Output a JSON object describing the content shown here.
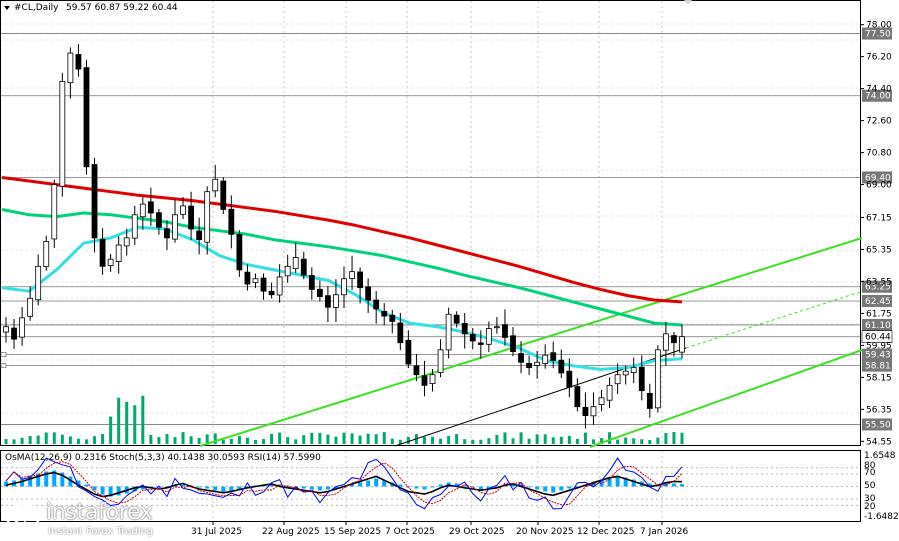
{
  "header": {
    "symbol": "#CL,Daily",
    "ohlc": "59.57 60.87 59.22 60.44"
  },
  "price_axis": {
    "ticks": [
      "78.00",
      "76.20",
      "74.40",
      "72.60",
      "70.80",
      "69.00",
      "67.15",
      "65.35",
      "63.55",
      "61.75",
      "59.95",
      "58.15",
      "56.35",
      "54.55"
    ]
  },
  "level_labels": [
    {
      "text": "77.50",
      "value": 77.5,
      "style": "level"
    },
    {
      "text": "74.00",
      "value": 74.0,
      "style": "level"
    },
    {
      "text": "69.40",
      "value": 69.4,
      "style": "level"
    },
    {
      "text": "63.25",
      "value": 63.25,
      "style": "level"
    },
    {
      "text": "62.45",
      "value": 62.45,
      "style": "level"
    },
    {
      "text": "61.10",
      "value": 61.1,
      "style": "level"
    },
    {
      "text": "60.44",
      "value": 60.44,
      "style": "current"
    },
    {
      "text": "59.43",
      "value": 59.43,
      "style": "level"
    },
    {
      "text": "58.81",
      "value": 58.81,
      "style": "level"
    },
    {
      "text": "55.50",
      "value": 55.5,
      "style": "level"
    }
  ],
  "time_axis": {
    "labels": [
      "31 Jul 2025",
      "22 Aug 2025",
      "15 Sep 2025",
      "7 Oct 2025",
      "29 Oct 2025",
      "20 Nov 2025",
      "12 Dec 2025",
      "7 Jan 2026"
    ]
  },
  "indicator": {
    "header": "OsMA(12,26,9) 0.2316  Stoch(5,3,3) 40.1438 30.0593  RSI(14) 57.5990",
    "ticks": [
      "1.6548",
      "80",
      "70",
      "50",
      "30",
      "20",
      "-1.6482"
    ]
  },
  "colors": {
    "ma_red": "#e00000",
    "ma_green": "#00d27a",
    "ma_cyan": "#33e0e6",
    "trend_green": "#3ee024",
    "candle": "#000000",
    "osma": "#00a8ff",
    "rsi": "#000000",
    "stoch_main": "#0000ff",
    "stoch_signal": "#c00000"
  },
  "chart_data": {
    "type": "candlestick",
    "symbol": "#CL",
    "timeframe": "Daily",
    "last_bar": {
      "open": 59.57,
      "high": 60.87,
      "low": 59.22,
      "close": 60.44
    },
    "ylim": [
      54.4,
      78.6
    ],
    "x_labels": [
      "31 Jul 2025",
      "22 Aug 2025",
      "15 Sep 2025",
      "7 Oct 2025",
      "29 Oct 2025",
      "20 Nov 2025",
      "12 Dec 2025",
      "7 Jan 2026"
    ],
    "closes": [
      61.0,
      60.3,
      61.5,
      62.6,
      64.4,
      65.8,
      69.0,
      74.8,
      76.4,
      75.5,
      70.0,
      66.0,
      64.4,
      64.8,
      65.6,
      66.0,
      67.3,
      67.9,
      67.4,
      66.6,
      66.0,
      67.3,
      67.8,
      66.5,
      65.9,
      68.6,
      69.3,
      67.6,
      66.2,
      64.2,
      63.4,
      63.7,
      63.0,
      62.8,
      63.8,
      64.4,
      64.9,
      63.9,
      63.1,
      62.7,
      62.1,
      62.8,
      63.7,
      64.1,
      63.2,
      62.5,
      62.0,
      61.6,
      61.3,
      60.1,
      58.9,
      58.3,
      57.7,
      58.3,
      59.7,
      61.7,
      61.2,
      60.6,
      60.2,
      60.0,
      60.9,
      61.0,
      60.4,
      59.6,
      59.0,
      58.7,
      59.0,
      59.4,
      59.1,
      58.4,
      57.6,
      56.5,
      56.0,
      56.5,
      57.0,
      57.7,
      58.3,
      58.5,
      58.7,
      57.4,
      56.4,
      59.7,
      60.6,
      60.1,
      60.4
    ],
    "moving_averages": [
      {
        "color": "#e00000",
        "values": [
          69.4,
          69.2,
          69.0,
          68.8,
          68.6,
          68.4,
          68.25,
          68.1,
          67.9,
          67.7,
          67.5,
          67.25,
          67.0,
          66.7,
          66.35,
          66.0,
          65.6,
          65.2,
          64.8,
          64.4,
          63.95,
          63.5,
          63.1,
          62.75,
          62.5,
          62.4
        ]
      },
      {
        "color": "#00d27a",
        "values": [
          67.6,
          67.3,
          67.2,
          67.4,
          67.3,
          67.1,
          66.9,
          66.6,
          66.4,
          66.2,
          65.9,
          65.7,
          65.5,
          65.25,
          65.0,
          64.65,
          64.3,
          63.9,
          63.55,
          63.2,
          62.8,
          62.4,
          62.0,
          61.6,
          61.2,
          61.1
        ]
      },
      {
        "color": "#33e0e6",
        "values": [
          63.2,
          63.0,
          64.2,
          65.7,
          66.0,
          66.6,
          66.5,
          65.9,
          65.0,
          64.5,
          64.2,
          63.9,
          63.6,
          62.8,
          61.8,
          61.2,
          61.0,
          60.7,
          60.3,
          59.8,
          59.1,
          58.8,
          58.6,
          58.7,
          59.1,
          59.2
        ]
      }
    ],
    "trendlines": [
      {
        "from": [
          200,
          446
        ],
        "to": [
          862,
          238
        ]
      },
      {
        "from": [
          590,
          447
        ],
        "to": [
          862,
          350
        ]
      }
    ],
    "osma": [
      0.5,
      0.6,
      0.8,
      1.1,
      1.3,
      1.5,
      1.6,
      1.4,
      1.0,
      0.6,
      0.2,
      -0.4,
      -0.8,
      -1.0,
      -0.9,
      -0.7,
      -0.5,
      -0.3,
      -0.2,
      -0.1,
      0.0,
      0.1,
      0.2,
      0.1,
      0.0,
      -0.2,
      -0.4,
      -0.6,
      -0.5,
      -0.3,
      -0.1,
      0.1,
      0.2,
      0.3,
      0.2,
      0.1,
      0.0,
      -0.2,
      -0.3,
      -0.4,
      -0.3,
      -0.2,
      0.0,
      0.2,
      0.4,
      0.6,
      0.8,
      0.6,
      0.4,
      0.2,
      0.0,
      -0.2,
      -0.3,
      -0.1,
      0.2,
      0.4,
      0.3,
      0.1,
      -0.1,
      -0.3,
      -0.2,
      0.0,
      0.2,
      0.3,
      0.2,
      0.0,
      -0.3,
      -0.5,
      -0.6,
      -0.4,
      -0.2,
      0.0,
      0.2,
      0.5,
      0.7,
      0.9,
      1.1,
      0.9,
      0.7,
      0.5,
      0.3,
      0.2,
      0.3,
      0.3,
      0.23
    ],
    "rsi": [
      52,
      55,
      58,
      62,
      66,
      70,
      72,
      68,
      60,
      52,
      45,
      38,
      34,
      36,
      40,
      44,
      48,
      50,
      48,
      46,
      48,
      52,
      55,
      50,
      46,
      44,
      42,
      40,
      42,
      45,
      48,
      50,
      52,
      54,
      50,
      48,
      46,
      44,
      42,
      40,
      42,
      46,
      50,
      54,
      58,
      62,
      66,
      60,
      54,
      48,
      42,
      40,
      38,
      42,
      48,
      52,
      50,
      48,
      46,
      44,
      46,
      48,
      52,
      54,
      50,
      46,
      42,
      38,
      36,
      40,
      44,
      48,
      52,
      56,
      60,
      64,
      66,
      62,
      58,
      54,
      50,
      52,
      56,
      58,
      57.6
    ]
  }
}
